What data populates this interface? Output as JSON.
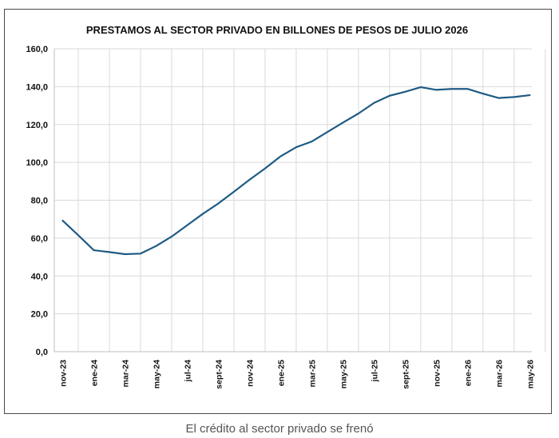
{
  "caption": "El crédito al sector privado se frenó",
  "chart_data": {
    "type": "line",
    "title": "PRESTAMOS  AL SECTOR PRIVADO EN BILLONES DE PESOS DE JULIO 2026",
    "xlabel": "",
    "ylabel": "",
    "ylim": [
      0,
      160
    ],
    "yticks": [
      "0,0",
      "20,0",
      "40,0",
      "60,0",
      "80,0",
      "100,0",
      "120,0",
      "140,0",
      "160,0"
    ],
    "xticks": [
      "nov-23",
      "ene-24",
      "mar-24",
      "may-24",
      "jul-24",
      "sept-24",
      "nov-24",
      "ene-25",
      "mar-25",
      "may-25",
      "jul-25",
      "sept-25",
      "nov-25",
      "ene-26",
      "mar-26",
      "may-26"
    ],
    "x": [
      "nov-23",
      "dic-23",
      "ene-24",
      "feb-24",
      "mar-24",
      "abr-24",
      "may-24",
      "jun-24",
      "jul-24",
      "ago-24",
      "sept-24",
      "oct-24",
      "nov-24",
      "dic-24",
      "ene-25",
      "feb-25",
      "mar-25",
      "abr-25",
      "may-25",
      "jun-25",
      "jul-25",
      "ago-25",
      "sept-25",
      "oct-25",
      "nov-25",
      "dic-25",
      "ene-26",
      "feb-26",
      "mar-26",
      "abr-26",
      "may-26"
    ],
    "series": [
      {
        "color": "#1f5b85",
        "values": [
          69.2,
          61.5,
          53.6,
          52.6,
          51.5,
          51.8,
          55.8,
          60.8,
          66.8,
          72.8,
          78.3,
          84.5,
          90.8,
          96.8,
          103.2,
          108.0,
          111.0,
          116.0,
          121.0,
          125.8,
          131.4,
          135.2,
          137.3,
          139.7,
          138.3,
          138.8,
          138.8,
          136.3,
          134.0,
          134.5,
          135.5
        ]
      }
    ],
    "grid": true,
    "legend": "none"
  }
}
